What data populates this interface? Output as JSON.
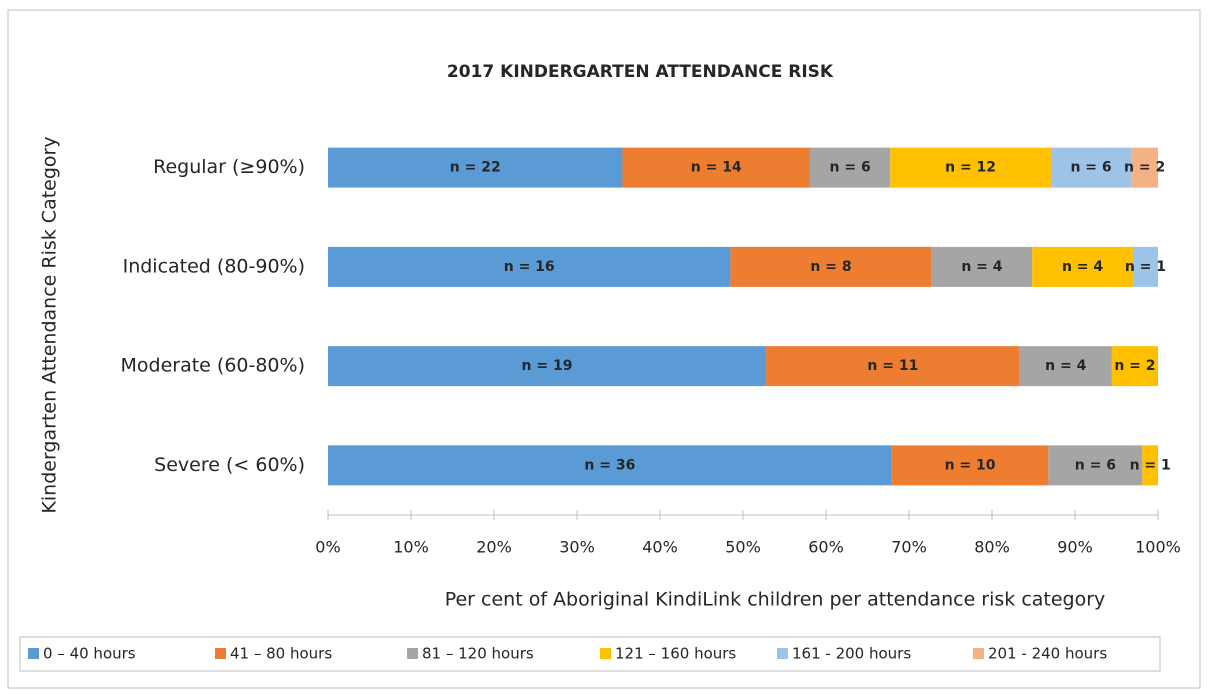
{
  "chart_data": {
    "type": "bar",
    "orientation": "horizontal",
    "stacking": "percent",
    "title": "2017 KINDERGARTEN ATTENDANCE RISK",
    "x_label": "Per cent of Aboriginal KindiLink children per attendance risk category",
    "y_label": "Kindergarten Attendance Risk Category",
    "categories": [
      "Regular (≥90%)",
      "Indicated (80-90%)",
      "Moderate (60-80%)",
      "Severe (< 60%)"
    ],
    "series": [
      {
        "name": "0 – 40 hours",
        "color": "#5b9bd5",
        "values": [
          22,
          16,
          19,
          36
        ],
        "value_labels": [
          "n = 22",
          "n = 16",
          "n = 19",
          "n = 36"
        ]
      },
      {
        "name": "41 – 80 hours",
        "color": "#ed7d31",
        "values": [
          14,
          8,
          11,
          10
        ],
        "value_labels": [
          "n = 14",
          "n = 8",
          "n = 11",
          "n = 10"
        ]
      },
      {
        "name": "81 – 120 hours",
        "color": "#a5a5a5",
        "values": [
          6,
          4,
          4,
          6
        ],
        "value_labels": [
          "n = 6",
          "n = 4",
          "n = 4",
          "n = 6"
        ]
      },
      {
        "name": "121 – 160 hours",
        "color": "#ffc000",
        "values": [
          12,
          4,
          2,
          1
        ],
        "value_labels": [
          "n = 12",
          "n = 4",
          "n = 2",
          "n = 1"
        ]
      },
      {
        "name": "161 - 200 hours",
        "color": "#9dc3e6",
        "values": [
          6,
          1,
          null,
          null
        ],
        "value_labels": [
          "n = 6",
          "n = 1",
          null,
          null
        ]
      },
      {
        "name": "201 - 240 hours",
        "color": "#f4b183",
        "values": [
          2,
          null,
          null,
          null
        ],
        "value_labels": [
          "n = 2",
          null,
          null,
          null
        ]
      }
    ],
    "xlim": [
      0,
      100
    ],
    "xticks": [
      {
        "value": 0,
        "label": "0%"
      },
      {
        "value": 10,
        "label": "10%"
      },
      {
        "value": 20,
        "label": "20%"
      },
      {
        "value": 30,
        "label": "30%"
      },
      {
        "value": 40,
        "label": "40%"
      },
      {
        "value": 50,
        "label": "50%"
      },
      {
        "value": 60,
        "label": "60%"
      },
      {
        "value": 70,
        "label": "70%"
      },
      {
        "value": 80,
        "label": "80%"
      },
      {
        "value": 90,
        "label": "90%"
      },
      {
        "value": 100,
        "label": "100%"
      }
    ],
    "legend": "bottom"
  }
}
